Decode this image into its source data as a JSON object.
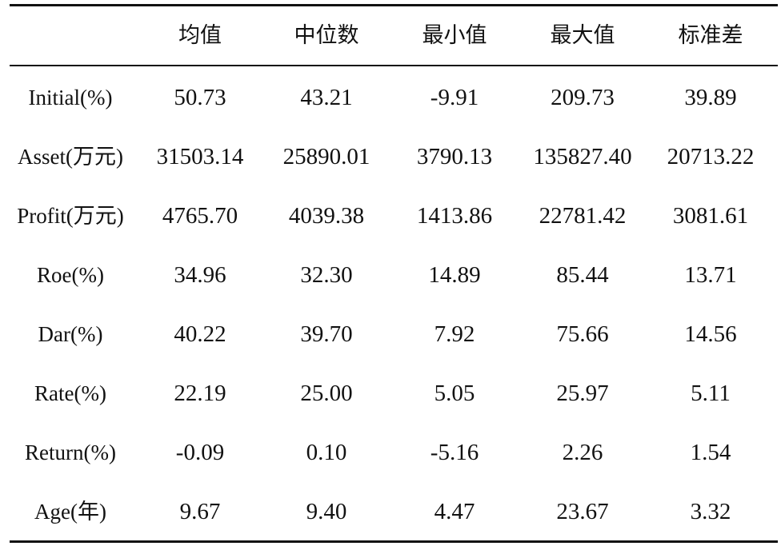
{
  "table": {
    "columns": [
      "均值",
      "中位数",
      "最小值",
      "最大值",
      "标准差"
    ],
    "rows": [
      {
        "label": "Initial(%)",
        "cells": [
          "50.73",
          "43.21",
          "-9.91",
          "209.73",
          "39.89"
        ]
      },
      {
        "label": "Asset(万元)",
        "cells": [
          "31503.14",
          "25890.01",
          "3790.13",
          "135827.40",
          "20713.22"
        ]
      },
      {
        "label": "Profit(万元)",
        "cells": [
          "4765.70",
          "4039.38",
          "1413.86",
          "22781.42",
          "3081.61"
        ]
      },
      {
        "label": "Roe(%)",
        "cells": [
          "34.96",
          "32.30",
          "14.89",
          "85.44",
          "13.71"
        ]
      },
      {
        "label": "Dar(%)",
        "cells": [
          "40.22",
          "39.70",
          "7.92",
          "75.66",
          "14.56"
        ]
      },
      {
        "label": "Rate(%)",
        "cells": [
          "22.19",
          "25.00",
          "5.05",
          "25.97",
          "5.11"
        ]
      },
      {
        "label": "Return(%)",
        "cells": [
          "-0.09",
          "0.10",
          "-5.16",
          "2.26",
          "1.54"
        ]
      },
      {
        "label": "Age(年)",
        "cells": [
          "9.67",
          "9.40",
          "4.47",
          "23.67",
          "3.32"
        ]
      }
    ]
  }
}
